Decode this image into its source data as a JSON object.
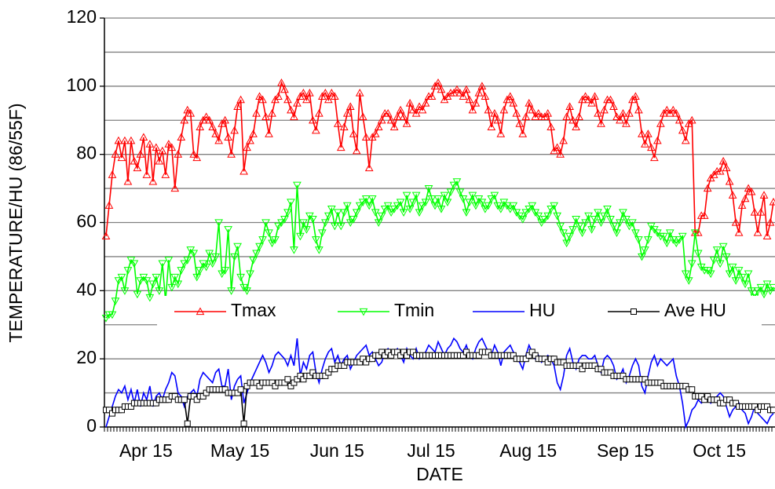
{
  "chart_data": {
    "type": "line",
    "y_label": "TEMPERATURE/HU (86/55F)",
    "x_label": "DATE",
    "categories": [
      null,
      null,
      null,
      null,
      null,
      null,
      null,
      null,
      null,
      null,
      null,
      null,
      null,
      null,
      "Apr 15",
      null,
      null,
      null,
      null,
      null,
      null,
      null,
      null,
      null,
      null,
      null,
      null,
      null,
      null,
      null,
      null,
      null,
      null,
      null,
      null,
      null,
      null,
      null,
      null,
      null,
      null,
      null,
      null,
      null,
      "May 15",
      null,
      null,
      null,
      null,
      null,
      null,
      null,
      null,
      null,
      null,
      null,
      null,
      null,
      null,
      null,
      null,
      null,
      null,
      null,
      null,
      null,
      null,
      null,
      null,
      null,
      null,
      null,
      null,
      null,
      null,
      "Jun 15",
      null,
      null,
      null,
      null,
      null,
      null,
      null,
      null,
      null,
      null,
      null,
      null,
      null,
      null,
      null,
      null,
      null,
      null,
      null,
      null,
      null,
      null,
      null,
      null,
      null,
      null,
      null,
      null,
      null,
      "Jul 15",
      null,
      null,
      null,
      null,
      null,
      null,
      null,
      null,
      null,
      null,
      null,
      null,
      null,
      null,
      null,
      null,
      null,
      null,
      null,
      null,
      null,
      null,
      null,
      null,
      null,
      null,
      null,
      null,
      null,
      null,
      "Aug 15",
      null,
      null,
      null,
      null,
      null,
      null,
      null,
      null,
      null,
      null,
      null,
      null,
      null,
      null,
      null,
      null,
      null,
      null,
      null,
      null,
      null,
      null,
      null,
      null,
      null,
      null,
      null,
      null,
      null,
      null,
      "Sep 15",
      null,
      null,
      null,
      null,
      null,
      null,
      null,
      null,
      null,
      null,
      null,
      null,
      null,
      null,
      null,
      null,
      null,
      null,
      null,
      null,
      null,
      null,
      null,
      null,
      null,
      null,
      null,
      null,
      null,
      "Oct 15",
      null,
      null,
      null,
      null,
      null,
      null,
      null,
      null,
      null,
      null,
      null,
      null,
      null,
      null,
      null,
      null
    ],
    "series": [
      {
        "name": "Tmax",
        "color": "#ff0000",
        "marker": "triangle-up",
        "values": [
          56,
          65,
          74,
          80,
          84,
          79,
          84,
          72,
          84,
          78,
          76,
          80,
          85,
          74,
          83,
          72,
          82,
          78,
          81,
          74,
          83,
          82,
          70,
          80,
          85,
          90,
          93,
          92,
          80,
          79,
          88,
          90,
          91,
          90,
          88,
          86,
          84,
          89,
          90,
          85,
          80,
          87,
          94,
          96,
          75,
          82,
          84,
          86,
          92,
          97,
          96,
          91,
          86,
          92,
          96,
          97,
          101,
          99,
          96,
          93,
          91,
          95,
          97,
          98,
          96,
          98,
          90,
          87,
          92,
          97,
          98,
          96,
          98,
          97,
          89,
          82,
          88,
          92,
          94,
          86,
          81,
          98,
          91,
          85,
          76,
          85,
          86,
          88,
          90,
          92,
          92,
          90,
          88,
          91,
          93,
          91,
          89,
          95,
          93,
          92,
          94,
          93,
          95,
          97,
          97,
          100,
          101,
          99,
          96,
          97,
          98,
          98,
          99,
          98,
          97,
          99,
          96,
          93,
          95,
          98,
          100,
          97,
          93,
          88,
          92,
          90,
          86,
          93,
          96,
          97,
          95,
          92,
          89,
          86,
          91,
          95,
          93,
          91,
          92,
          91,
          91,
          92,
          88,
          81,
          82,
          80,
          84,
          91,
          94,
          90,
          88,
          91,
          96,
          97,
          96,
          95,
          97,
          92,
          89,
          93,
          96,
          96,
          94,
          91,
          90,
          92,
          89,
          92,
          96,
          97,
          93,
          86,
          83,
          86,
          82,
          79,
          84,
          89,
          92,
          93,
          92,
          93,
          92,
          90,
          87,
          84,
          89,
          90,
          57,
          57,
          62,
          62,
          70,
          73,
          74,
          75,
          75,
          78,
          76,
          72,
          68,
          60,
          57,
          65,
          67,
          70,
          69,
          63,
          57,
          63,
          68,
          56,
          60,
          66
        ]
      },
      {
        "name": "Tmin",
        "color": "#00ff00",
        "marker": "triangle-down",
        "values": [
          32,
          33,
          33,
          37,
          43,
          44,
          40,
          46,
          49,
          48,
          39,
          43,
          44,
          43,
          38,
          42,
          44,
          40,
          48,
          37,
          49,
          41,
          44,
          42,
          46,
          48,
          49,
          52,
          51,
          44,
          46,
          48,
          47,
          51,
          48,
          50,
          60,
          45,
          46,
          58,
          40,
          50,
          53,
          44,
          41,
          40,
          45,
          49,
          51,
          53,
          55,
          60,
          57,
          54,
          55,
          59,
          60,
          61,
          63,
          66,
          52,
          71,
          56,
          60,
          58,
          62,
          61,
          55,
          52,
          57,
          60,
          62,
          64,
          59,
          63,
          59,
          63,
          65,
          60,
          61,
          63,
          65,
          66,
          67,
          65,
          67,
          63,
          60,
          62,
          64,
          65,
          63,
          64,
          65,
          66,
          63,
          68,
          64,
          66,
          68,
          63,
          65,
          66,
          70,
          67,
          65,
          67,
          64,
          68,
          66,
          69,
          71,
          72,
          69,
          67,
          63,
          66,
          68,
          65,
          67,
          66,
          64,
          65,
          67,
          68,
          65,
          64,
          66,
          65,
          64,
          65,
          63,
          62,
          61,
          63,
          64,
          65,
          63,
          62,
          60,
          61,
          62,
          64,
          65,
          62,
          59,
          57,
          54,
          56,
          58,
          61,
          59,
          57,
          60,
          62,
          58,
          61,
          63,
          60,
          62,
          64,
          61,
          59,
          57,
          60,
          63,
          61,
          59,
          60,
          57,
          55,
          50,
          52,
          55,
          59,
          58,
          57,
          56,
          56,
          54,
          57,
          55,
          54,
          55,
          56,
          45,
          43,
          48,
          57,
          51,
          47,
          46,
          46,
          45,
          49,
          52,
          48,
          53,
          50,
          45,
          47,
          43,
          46,
          44,
          42,
          45,
          40,
          38,
          40,
          41,
          39,
          42,
          40,
          41
        ]
      },
      {
        "name": "HU",
        "color": "#0000ff",
        "marker": "none",
        "values": [
          0,
          3,
          6,
          9,
          11,
          10,
          12,
          8,
          11,
          7,
          11,
          6,
          10,
          8,
          12,
          6,
          9,
          10,
          8,
          11,
          13,
          16,
          15,
          10,
          9,
          6,
          9,
          10,
          11,
          9,
          14,
          16,
          15,
          14,
          13,
          16,
          17,
          12,
          12,
          17,
          8,
          12,
          14,
          15,
          7,
          10,
          13,
          15,
          17,
          19,
          21,
          19,
          16,
          18,
          21,
          22,
          21,
          20,
          18,
          21,
          18,
          26,
          15,
          19,
          17,
          21,
          22,
          16,
          13,
          17,
          20,
          22,
          23,
          19,
          21,
          18,
          20,
          21,
          17,
          19,
          21,
          22,
          23,
          24,
          21,
          22,
          20,
          18,
          19,
          22,
          23,
          21,
          22,
          23,
          21,
          19,
          23,
          21,
          20,
          23,
          20,
          21,
          22,
          24,
          23,
          22,
          25,
          23,
          21,
          23,
          24,
          26,
          25,
          23,
          22,
          24,
          21,
          20,
          23,
          25,
          26,
          24,
          22,
          21,
          24,
          22,
          18,
          22,
          23,
          24,
          22,
          20,
          19,
          17,
          21,
          24,
          22,
          20,
          21,
          19,
          20,
          21,
          20,
          18,
          13,
          11,
          15,
          21,
          23,
          19,
          17,
          20,
          21,
          21,
          20,
          20,
          21,
          18,
          16,
          20,
          21,
          20,
          18,
          14,
          15,
          17,
          13,
          15,
          18,
          20,
          18,
          12,
          10,
          15,
          19,
          21,
          18,
          20,
          19,
          18,
          19,
          20,
          15,
          12,
          7,
          0,
          2,
          5,
          6,
          8,
          7,
          8,
          9,
          7,
          8,
          9,
          10,
          9,
          6,
          3,
          5,
          6,
          7,
          5,
          4,
          1,
          3,
          6,
          4,
          3,
          2,
          1,
          3,
          4
        ]
      },
      {
        "name": "Ave HU",
        "color": "#000000",
        "marker": "square",
        "values": [
          5,
          5,
          4,
          5,
          5,
          5,
          6,
          6,
          6,
          7,
          7,
          7,
          7,
          7,
          7,
          7,
          7,
          8,
          8,
          8,
          8,
          9,
          9,
          8,
          8,
          8,
          1,
          9,
          9,
          8,
          9,
          9,
          10,
          11,
          11,
          11,
          11,
          11,
          11,
          10,
          10,
          10,
          10,
          11,
          1,
          12,
          13,
          13,
          13,
          12,
          13,
          13,
          13,
          13,
          12,
          13,
          13,
          13,
          14,
          12,
          13,
          14,
          15,
          14,
          15,
          15,
          16,
          15,
          15,
          15,
          15,
          16,
          17,
          17,
          18,
          18,
          18,
          19,
          19,
          19,
          19,
          19,
          20,
          19,
          20,
          20,
          21,
          21,
          22,
          21,
          22,
          21,
          22,
          22,
          21,
          22,
          21,
          22,
          22,
          21,
          21,
          21,
          21,
          21,
          21,
          21,
          21,
          21,
          21,
          21,
          21,
          21,
          21,
          21,
          21,
          22,
          21,
          21,
          21,
          21,
          22,
          22,
          22,
          21,
          21,
          21,
          21,
          21,
          21,
          21,
          21,
          20,
          20,
          20,
          20,
          21,
          22,
          21,
          20,
          20,
          20,
          19,
          20,
          20,
          19,
          19,
          19,
          18,
          18,
          18,
          18,
          18,
          17,
          18,
          18,
          18,
          18,
          17,
          17,
          16,
          16,
          16,
          15,
          15,
          15,
          15,
          14,
          14,
          14,
          14,
          14,
          14,
          14,
          13,
          13,
          13,
          13,
          13,
          12,
          12,
          12,
          12,
          12,
          12,
          12,
          12,
          11,
          11,
          9,
          9,
          9,
          8,
          9,
          8,
          8,
          8,
          7,
          7,
          8,
          8,
          7,
          7,
          6,
          6,
          6,
          6,
          6,
          6,
          5,
          6,
          6,
          6,
          5,
          5
        ]
      }
    ],
    "ylim": [
      0,
      120
    ],
    "yticks": [
      0,
      20,
      40,
      60,
      80,
      100,
      120
    ],
    "ygrid": [
      10,
      20,
      30,
      40,
      50,
      60,
      70,
      80,
      90,
      100,
      110,
      120
    ],
    "grid": true,
    "legend": "center"
  }
}
